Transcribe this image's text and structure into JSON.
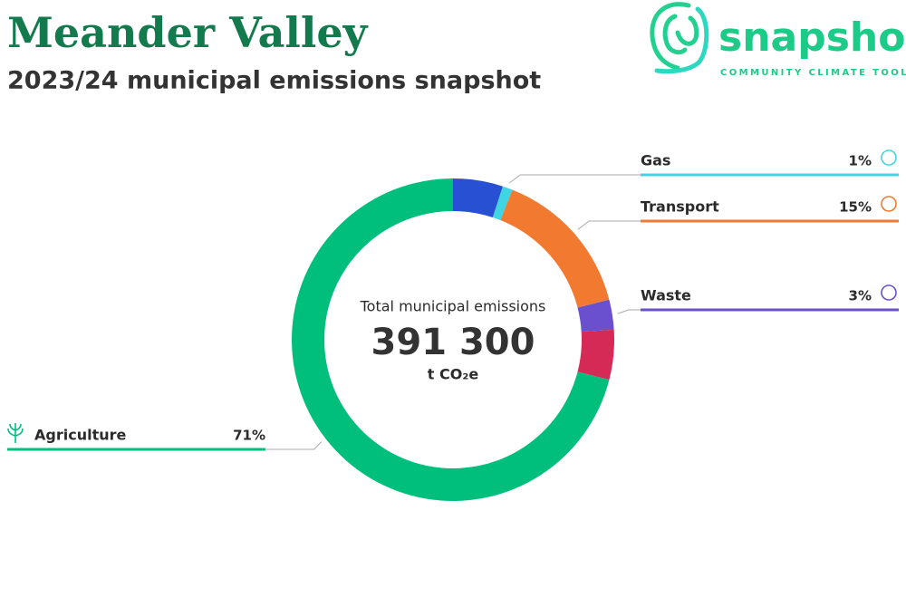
{
  "header": {
    "title": "Meander Valley",
    "subtitle": "2023/24 municipal emissions snapshot"
  },
  "logo": {
    "name": "snapshot",
    "tagline": "COMMUNITY CLIMATE TOOL"
  },
  "chart_data": {
    "type": "donut",
    "center_label": "Total municipal emissions",
    "total": "391 300",
    "unit": "t CO₂e",
    "categories": [
      null,
      "Gas",
      "Transport",
      "Waste",
      null,
      "Agriculture"
    ],
    "values": [
      5,
      1,
      15,
      3,
      5,
      71
    ],
    "value_labels": [
      null,
      "1%",
      "15%",
      "3%",
      null,
      "71%"
    ],
    "colors": [
      "#2750d2",
      "#3fd5e3",
      "#f27a30",
      "#6a50cf",
      "#d42a55",
      "#00bf7d"
    ]
  }
}
